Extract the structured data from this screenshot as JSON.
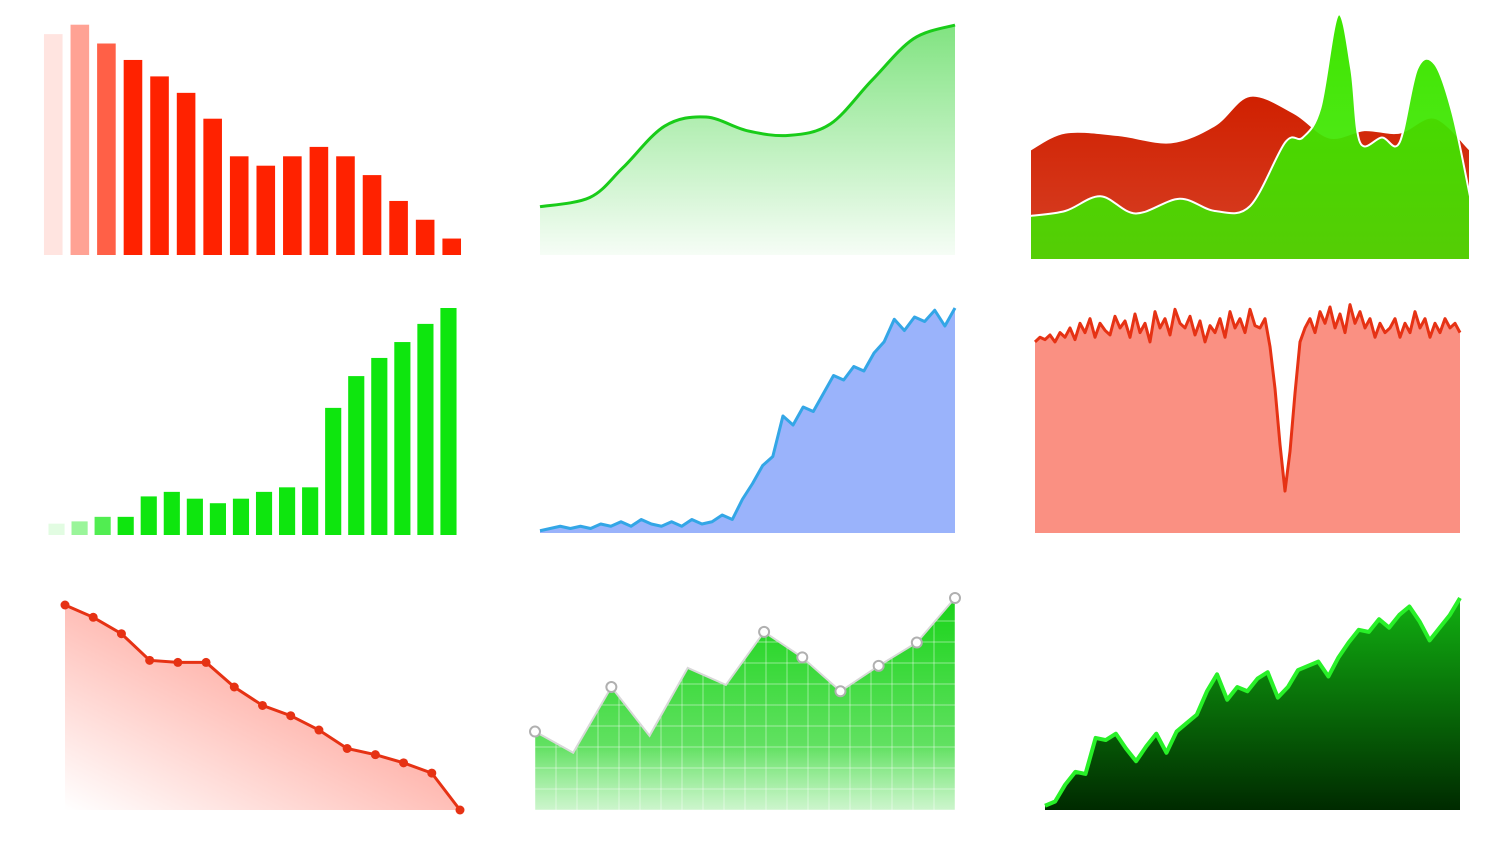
{
  "chart_data": [
    {
      "id": "c1",
      "type": "bar",
      "title": "",
      "xlabel": "",
      "ylabel": "",
      "ylim": [
        0,
        100
      ],
      "grid": false,
      "legend": "none",
      "color": "#ff2200",
      "fade": "left",
      "values": [
        94,
        98,
        90,
        83,
        76,
        69,
        58,
        42,
        38,
        42,
        46,
        42,
        34,
        23,
        15,
        7
      ]
    },
    {
      "id": "c2",
      "type": "area",
      "title": "",
      "xlabel": "",
      "ylabel": "",
      "ylim": [
        0,
        100
      ],
      "grid": false,
      "legend": "none",
      "curve": "smooth",
      "color": "#19cc19",
      "x": [
        0,
        12,
        20,
        30,
        40,
        50,
        60,
        70,
        80,
        90,
        100
      ],
      "values": [
        21,
        25,
        38,
        56,
        60,
        54,
        52,
        57,
        76,
        94,
        100
      ]
    },
    {
      "id": "c3",
      "type": "area",
      "title": "",
      "xlabel": "",
      "ylabel": "",
      "ylim": [
        0,
        100
      ],
      "grid": false,
      "legend": "none",
      "curve": "smooth",
      "series": [
        {
          "color": "#d02000",
          "x": [
            0,
            8,
            20,
            32,
            42,
            50,
            60,
            68,
            76,
            84,
            92,
            100
          ],
          "values": [
            45,
            52,
            51,
            48,
            55,
            67,
            60,
            50,
            53,
            52,
            58,
            45
          ]
        },
        {
          "color": "#3ee600",
          "x": [
            0,
            8,
            16,
            24,
            34,
            42,
            50,
            58,
            62,
            66,
            70,
            73,
            75,
            80,
            84,
            88,
            92,
            96,
            100
          ],
          "values": [
            18,
            20,
            26,
            19,
            25,
            20,
            22,
            48,
            50,
            62,
            100,
            78,
            48,
            50,
            48,
            78,
            80,
            60,
            26
          ]
        }
      ]
    },
    {
      "id": "c4",
      "type": "bar",
      "title": "",
      "xlabel": "",
      "ylabel": "",
      "ylim": [
        0,
        100
      ],
      "grid": false,
      "legend": "none",
      "color": "#0ee60e",
      "fade": "left",
      "values": [
        5,
        6,
        8,
        8,
        17,
        19,
        16,
        14,
        16,
        19,
        21,
        21,
        56,
        70,
        78,
        85,
        93,
        100
      ]
    },
    {
      "id": "c5",
      "type": "area",
      "title": "",
      "xlabel": "",
      "ylabel": "",
      "ylim": [
        0,
        100
      ],
      "grid": false,
      "legend": "none",
      "color": "#9ab3fb",
      "line_color": "#33a6e6",
      "values": [
        1,
        2,
        3,
        2,
        3,
        2,
        4,
        3,
        5,
        3,
        6,
        4,
        3,
        5,
        3,
        6,
        4,
        5,
        8,
        6,
        15,
        22,
        30,
        34,
        52,
        48,
        56,
        54,
        62,
        70,
        68,
        74,
        72,
        80,
        85,
        95,
        90,
        96,
        94,
        99,
        92,
        100
      ]
    },
    {
      "id": "c6",
      "type": "area",
      "title": "",
      "xlabel": "",
      "ylabel": "",
      "ylim": [
        0,
        100
      ],
      "grid": false,
      "legend": "none",
      "color": "#fa9082",
      "line_color": "#e63214",
      "values": [
        82,
        84,
        83,
        85,
        82,
        86,
        84,
        88,
        83,
        90,
        86,
        92,
        84,
        90,
        87,
        85,
        93,
        88,
        91,
        84,
        94,
        86,
        90,
        82,
        95,
        88,
        92,
        85,
        96,
        90,
        88,
        93,
        85,
        91,
        82,
        89,
        86,
        92,
        84,
        95,
        88,
        92,
        86,
        96,
        89,
        88,
        92,
        80,
        62,
        38,
        18,
        35,
        60,
        82,
        88,
        92,
        86,
        95,
        90,
        97,
        88,
        94,
        86,
        98,
        90,
        95,
        88,
        92,
        84,
        90,
        86,
        88,
        92,
        84,
        90,
        86,
        95,
        88,
        92,
        84,
        90,
        86,
        92,
        88,
        90,
        86
      ],
      "_note_removed": true
    },
    {
      "id": "c7",
      "type": "line",
      "title": "",
      "xlabel": "",
      "ylabel": "",
      "ylim": [
        0,
        100
      ],
      "grid": false,
      "legend": "none",
      "color": "#e63214",
      "fill": "#ff7060",
      "values": [
        100,
        94,
        86,
        73,
        72,
        72,
        60,
        51,
        46,
        39,
        30,
        27,
        23,
        18,
        0
      ]
    },
    {
      "id": "c8",
      "type": "line",
      "title": "",
      "xlabel": "",
      "ylabel": "",
      "ylim": [
        0,
        100
      ],
      "grid": true,
      "legend": "none",
      "color": "#d8d8d8",
      "fill": "#19d319",
      "values": [
        37,
        27,
        58,
        35,
        67,
        59,
        84,
        72,
        56,
        68,
        79,
        100
      ],
      "markers": [
        0,
        2,
        6,
        7,
        8,
        9,
        10,
        11
      ]
    },
    {
      "id": "c9",
      "type": "area",
      "title": "",
      "xlabel": "",
      "ylabel": "",
      "ylim": [
        0,
        100
      ],
      "grid": false,
      "legend": "none",
      "color": "#0a8a0a",
      "line_color": "#28f028",
      "values": [
        2,
        4,
        12,
        18,
        17,
        34,
        33,
        36,
        29,
        23,
        30,
        36,
        27,
        37,
        41,
        45,
        56,
        64,
        52,
        58,
        56,
        62,
        65,
        53,
        58,
        66,
        68,
        70,
        63,
        72,
        79,
        85,
        84,
        90,
        86,
        92,
        96,
        89,
        80,
        86,
        92,
        100
      ]
    }
  ]
}
